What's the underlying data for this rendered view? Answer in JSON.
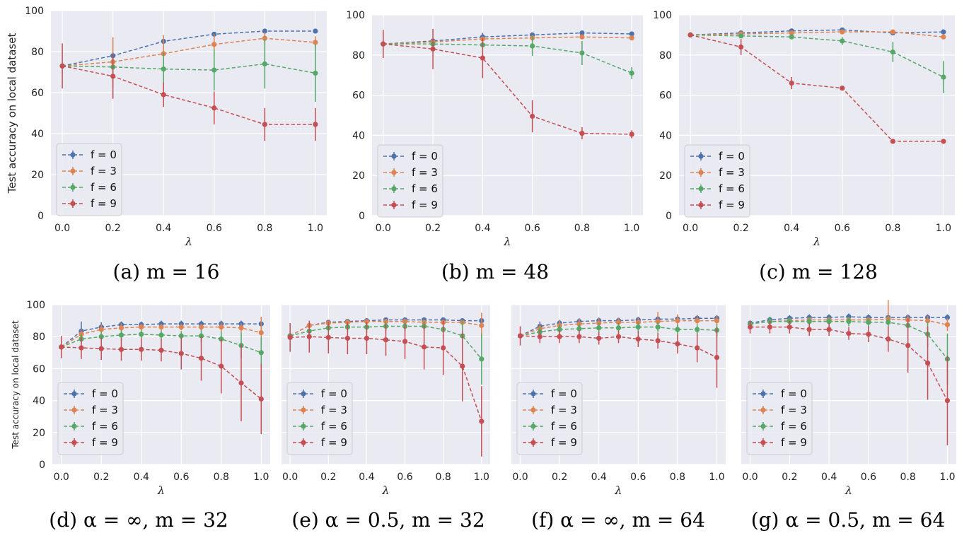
{
  "colors": {
    "f0": "#4c72b0",
    "f3": "#dd8452",
    "f6": "#55a868",
    "f9": "#c44e52",
    "plot_bg": "#eaeaf2",
    "grid": "#ffffff"
  },
  "chart_data": [
    {
      "id": "a",
      "type": "line",
      "caption": "(a) m = 16",
      "xlabel": "λ",
      "ylabel": "Test accuracy on local dataset",
      "xlim": [
        0,
        1
      ],
      "ylim": [
        0,
        100
      ],
      "xticks": [
        "0.0",
        "0.2",
        "0.4",
        "0.6",
        "0.8",
        "1.0"
      ],
      "yticks": [
        "0",
        "20",
        "40",
        "60",
        "80",
        "100"
      ],
      "x": [
        0.0,
        0.2,
        0.4,
        0.6,
        0.8,
        1.0
      ],
      "series": [
        {
          "name": "f = 0",
          "color_key": "f0",
          "values": [
            73,
            78,
            85,
            88.5,
            90,
            90
          ],
          "err": [
            0,
            0,
            0,
            0,
            0,
            0
          ]
        },
        {
          "name": "f = 3",
          "color_key": "f3",
          "values": [
            73,
            75,
            79,
            83.5,
            86.5,
            84.5
          ],
          "err": [
            0,
            12,
            9,
            5,
            3,
            3
          ]
        },
        {
          "name": "f = 6",
          "color_key": "f6",
          "values": [
            73,
            72.5,
            71.5,
            71,
            74,
            69.5
          ],
          "err": [
            0,
            7,
            8,
            10,
            12,
            14
          ]
        },
        {
          "name": "f = 9",
          "color_key": "f9",
          "values": [
            73,
            68,
            59,
            52.5,
            44.5,
            44.5
          ],
          "err": [
            11,
            11,
            6,
            8,
            8,
            8
          ]
        }
      ]
    },
    {
      "id": "b",
      "type": "line",
      "caption": "(b) m = 48",
      "xlabel": "λ",
      "ylabel": "",
      "xlim": [
        0,
        1
      ],
      "ylim": [
        0,
        100
      ],
      "xticks": [
        "0.0",
        "0.2",
        "0.4",
        "0.6",
        "0.8",
        "1.0"
      ],
      "yticks": [
        "0",
        "20",
        "40",
        "60",
        "80",
        "100"
      ],
      "x": [
        0.0,
        0.2,
        0.4,
        0.6,
        0.8,
        1.0
      ],
      "series": [
        {
          "name": "f = 0",
          "color_key": "f0",
          "values": [
            85.5,
            87,
            89,
            90,
            91,
            90.5
          ],
          "err": [
            0,
            0,
            2,
            0,
            0,
            0
          ]
        },
        {
          "name": "f = 3",
          "color_key": "f3",
          "values": [
            85.5,
            86.5,
            88,
            88.5,
            89,
            88.5
          ],
          "err": [
            0,
            0,
            0,
            0,
            0,
            0
          ]
        },
        {
          "name": "f = 6",
          "color_key": "f6",
          "values": [
            85.5,
            85.5,
            85,
            84.5,
            81,
            71
          ],
          "err": [
            0,
            0,
            0,
            5,
            6,
            3
          ]
        },
        {
          "name": "f = 9",
          "color_key": "f9",
          "values": [
            85.5,
            83,
            78.5,
            49.5,
            41,
            40.5
          ],
          "err": [
            7,
            10,
            10,
            8,
            3,
            2
          ]
        }
      ]
    },
    {
      "id": "c",
      "type": "line",
      "caption": "(c) m = 128",
      "xlabel": "λ",
      "ylabel": "",
      "xlim": [
        0,
        1
      ],
      "ylim": [
        0,
        100
      ],
      "xticks": [
        "0.0",
        "0.2",
        "0.4",
        "0.6",
        "0.8",
        "1.0"
      ],
      "yticks": [
        "0",
        "20",
        "40",
        "60",
        "80",
        "100"
      ],
      "x": [
        0.0,
        0.2,
        0.4,
        0.6,
        0.8,
        1.0
      ],
      "series": [
        {
          "name": "f = 0",
          "color_key": "f0",
          "values": [
            90,
            91,
            92,
            92.5,
            91,
            91.5
          ],
          "err": [
            0,
            0,
            0,
            0,
            0,
            0
          ]
        },
        {
          "name": "f = 3",
          "color_key": "f3",
          "values": [
            90,
            90.5,
            91,
            91.5,
            91.5,
            89
          ],
          "err": [
            0,
            0,
            0,
            0,
            0,
            0
          ]
        },
        {
          "name": "f = 6",
          "color_key": "f6",
          "values": [
            90,
            89.5,
            89,
            87,
            81.5,
            69
          ],
          "err": [
            0,
            0,
            0,
            2,
            5,
            8
          ]
        },
        {
          "name": "f = 9",
          "color_key": "f9",
          "values": [
            90,
            84,
            66,
            63.5,
            37,
            37
          ],
          "err": [
            0,
            4,
            3,
            1,
            1,
            1
          ]
        }
      ]
    },
    {
      "id": "d",
      "type": "line",
      "caption": "(d) α = ∞, m = 32",
      "xlabel": "λ",
      "ylabel": "Test accuracy on local dataset",
      "xlim": [
        0,
        1
      ],
      "ylim": [
        0,
        100
      ],
      "xticks": [
        "0.0",
        "0.2",
        "0.4",
        "0.6",
        "0.8",
        "1.0"
      ],
      "yticks": [
        "0",
        "20",
        "40",
        "60",
        "80",
        "100"
      ],
      "x": [
        0.0,
        0.1,
        0.2,
        0.3,
        0.4,
        0.5,
        0.6,
        0.7,
        0.8,
        0.9,
        1.0
      ],
      "series": [
        {
          "name": "f = 0",
          "color_key": "f0",
          "values": [
            73.5,
            83.5,
            86,
            87.5,
            87.5,
            88,
            88,
            88,
            88,
            88,
            88
          ],
          "err": [
            0,
            6,
            3,
            2,
            2,
            2,
            2,
            2,
            2,
            2,
            2
          ]
        },
        {
          "name": "f = 3",
          "color_key": "f3",
          "values": [
            73.5,
            81.5,
            84.5,
            85.5,
            86,
            86,
            86,
            86,
            86,
            85.5,
            82.5
          ],
          "err": [
            0,
            3,
            3,
            3,
            2,
            2,
            2,
            2,
            3,
            3,
            10
          ]
        },
        {
          "name": "f = 6",
          "color_key": "f6",
          "values": [
            73.5,
            78.5,
            80,
            81,
            81.5,
            81,
            80.5,
            80.5,
            78.5,
            74.5,
            70
          ],
          "err": [
            0,
            3,
            3,
            3,
            3,
            3,
            3,
            4,
            5,
            8,
            10
          ]
        },
        {
          "name": "f = 9",
          "color_key": "f9",
          "values": [
            73.5,
            73,
            72.5,
            72,
            72,
            71.5,
            69.5,
            66.5,
            61.5,
            51,
            41
          ],
          "err": [
            7,
            7,
            7,
            7,
            7,
            7,
            10,
            14,
            17,
            24,
            22
          ]
        }
      ]
    },
    {
      "id": "e",
      "type": "line",
      "caption": "(e) α = 0.5, m = 32",
      "xlabel": "λ",
      "ylabel": "",
      "xlim": [
        0,
        1
      ],
      "ylim": [
        0,
        100
      ],
      "xticks": [
        "0.0",
        "0.2",
        "0.4",
        "0.6",
        "0.8",
        "1.0"
      ],
      "yticks": [],
      "x": [
        0.0,
        0.1,
        0.2,
        0.3,
        0.4,
        0.5,
        0.6,
        0.7,
        0.8,
        0.9,
        1.0
      ],
      "series": [
        {
          "name": "f = 0",
          "color_key": "f0",
          "values": [
            80.5,
            87,
            89,
            89.5,
            90,
            90.5,
            90.5,
            90.5,
            90.5,
            90,
            90
          ],
          "err": [
            0,
            0,
            0,
            0,
            0,
            0,
            0,
            0,
            0,
            0,
            0
          ]
        },
        {
          "name": "f = 3",
          "color_key": "f3",
          "values": [
            80.5,
            87,
            88.5,
            89,
            89.5,
            89.5,
            89.5,
            89,
            89,
            89,
            87
          ],
          "err": [
            0,
            0,
            0,
            0,
            0,
            0,
            0,
            0,
            0,
            0,
            8
          ]
        },
        {
          "name": "f = 6",
          "color_key": "f6",
          "values": [
            80.5,
            83.5,
            85.5,
            86,
            86,
            86.5,
            86.5,
            86.5,
            84.5,
            80.5,
            66
          ],
          "err": [
            0,
            3,
            3,
            3,
            3,
            3,
            3,
            3,
            5,
            10,
            16
          ]
        },
        {
          "name": "f = 9",
          "color_key": "f9",
          "values": [
            79.5,
            80,
            79.5,
            79,
            79,
            78,
            77,
            73.5,
            73,
            61.5,
            27
          ],
          "err": [
            9,
            10,
            10,
            10,
            10,
            10,
            11,
            14,
            17,
            22,
            22
          ]
        }
      ]
    },
    {
      "id": "f",
      "type": "line",
      "caption": "(f) α = ∞, m = 64",
      "xlabel": "λ",
      "ylabel": "",
      "xlim": [
        0,
        1
      ],
      "ylim": [
        0,
        100
      ],
      "xticks": [
        "0.0",
        "0.2",
        "0.4",
        "0.6",
        "0.8",
        "1.0"
      ],
      "yticks": [],
      "x": [
        0.0,
        0.1,
        0.2,
        0.3,
        0.4,
        0.5,
        0.6,
        0.7,
        0.8,
        0.9,
        1.0
      ],
      "series": [
        {
          "name": "f = 0",
          "color_key": "f0",
          "values": [
            80.5,
            86.5,
            88.5,
            89.5,
            90,
            90,
            90.5,
            91,
            91,
            91.5,
            91.5
          ],
          "err": [
            0,
            3,
            2,
            2,
            2,
            2,
            2,
            2,
            2,
            2,
            2
          ]
        },
        {
          "name": "f = 3",
          "color_key": "f3",
          "values": [
            80.5,
            85,
            87,
            88,
            88.5,
            89,
            89,
            89.5,
            90,
            90,
            90
          ],
          "err": [
            0,
            3,
            3,
            3,
            3,
            3,
            3,
            6,
            4,
            3,
            3
          ]
        },
        {
          "name": "f = 6",
          "color_key": "f6",
          "values": [
            80.5,
            83,
            84.5,
            85,
            85.5,
            85.5,
            86,
            86,
            84.5,
            84.5,
            84
          ],
          "err": [
            0,
            3,
            3,
            3,
            3,
            3,
            3,
            3,
            3,
            3,
            4
          ]
        },
        {
          "name": "f = 9",
          "color_key": "f9",
          "values": [
            80.5,
            80,
            80,
            80,
            79,
            80,
            78.5,
            77.5,
            75.5,
            73,
            67
          ],
          "err": [
            6,
            4,
            4,
            4,
            4,
            4,
            5,
            5,
            6,
            9,
            19
          ]
        }
      ]
    },
    {
      "id": "g",
      "type": "line",
      "caption": "(g) α = 0.5, m = 64",
      "xlabel": "λ",
      "ylabel": "",
      "xlim": [
        0,
        1
      ],
      "ylim": [
        0,
        100
      ],
      "xticks": [
        "0.0",
        "0.2",
        "0.4",
        "0.6",
        "0.8",
        "1.0"
      ],
      "yticks": [],
      "x": [
        0.0,
        0.1,
        0.2,
        0.3,
        0.4,
        0.5,
        0.6,
        0.7,
        0.8,
        0.9,
        1.0
      ],
      "series": [
        {
          "name": "f = 0",
          "color_key": "f0",
          "values": [
            88.5,
            90.5,
            91.5,
            92,
            92,
            92.5,
            92,
            92,
            92,
            92,
            92
          ],
          "err": [
            0,
            2,
            2,
            2,
            2,
            2,
            2,
            2,
            2,
            2,
            2
          ]
        },
        {
          "name": "f = 3",
          "color_key": "f3",
          "values": [
            88,
            89.5,
            90,
            90.5,
            90.5,
            90.5,
            90.5,
            91,
            90.5,
            90,
            87.5
          ],
          "err": [
            0,
            2,
            2,
            2,
            2,
            2,
            2,
            12,
            3,
            3,
            4
          ]
        },
        {
          "name": "f = 6",
          "color_key": "f6",
          "values": [
            88,
            89.5,
            89.5,
            89.5,
            89.5,
            89.5,
            89,
            89,
            87,
            81.5,
            66
          ],
          "err": [
            0,
            3,
            3,
            3,
            3,
            3,
            3,
            3,
            3,
            8,
            16
          ]
        },
        {
          "name": "f = 9",
          "color_key": "f9",
          "values": [
            86,
            86,
            86,
            84.5,
            84.5,
            82,
            81.5,
            78.5,
            74.5,
            63.5,
            40
          ],
          "err": [
            4,
            4,
            4,
            4,
            4,
            4,
            5,
            8,
            17,
            23,
            28
          ]
        }
      ]
    }
  ]
}
